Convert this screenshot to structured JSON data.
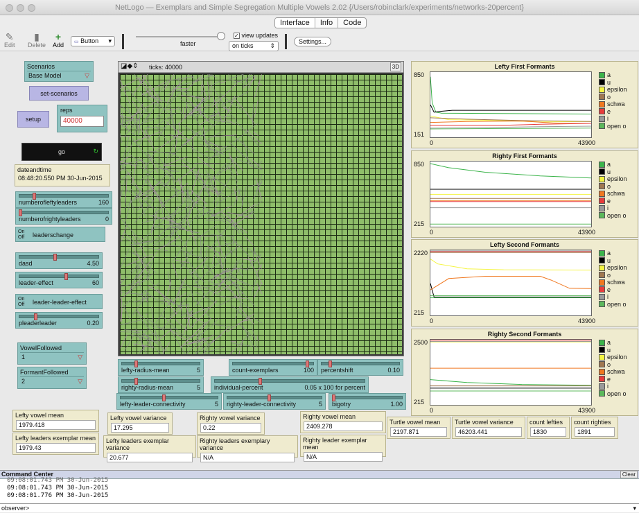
{
  "window": {
    "title": "NetLogo — Exemplars and Simple Segregation Multiple Vowels 2.02 {/Users/robinclark/experiments/networks-20percent}"
  },
  "tabs": [
    "Interface",
    "Info",
    "Code"
  ],
  "toolbar": {
    "edit": "Edit",
    "delete": "Delete",
    "add": "Add",
    "widget_type": "Button",
    "speed_label": "faster",
    "view_updates": "view updates",
    "update_mode": "on ticks",
    "settings": "Settings..."
  },
  "widgets": {
    "scenarios": {
      "label": "Scenarios",
      "value": "Base Model"
    },
    "set_scenarios": "set-scenarios",
    "setup": "setup",
    "reps": {
      "label": "reps",
      "value": "40000"
    },
    "go": "go",
    "dateandtime": {
      "label": "dateandtime",
      "value": "08:48:20.550 PM 30-Jun-2015"
    },
    "numberofleftyleaders": {
      "label": "numberofleftyleaders",
      "value": "160",
      "fraction": 0.16
    },
    "numberofrightyleaders": {
      "label": "numberofrightyleaders",
      "value": "0",
      "fraction": 0.0
    },
    "leaderschange": {
      "label": "leaderschange",
      "on": "On",
      "off": "Off"
    },
    "dasd": {
      "label": "dasd",
      "value": "4.50",
      "fraction": 0.45
    },
    "leader_effect": {
      "label": "leader-effect",
      "value": "60",
      "fraction": 0.6
    },
    "leader_leader_effect": {
      "label": "leader-leader-effect",
      "on": "On",
      "off": "Off"
    },
    "pleaderleader": {
      "label": "pleaderleader",
      "value": "0.20",
      "fraction": 0.2
    },
    "vowelfollowed": {
      "label": "VowelFollowed",
      "value": "1"
    },
    "formantfollowed": {
      "label": "FormantFollowed",
      "value": "2"
    }
  },
  "view": {
    "ticks_label": "ticks: 40000",
    "three_d": "3D"
  },
  "bottom_sliders": {
    "lefty_radius_mean": {
      "label": "lefty-radius-mean",
      "value": "5",
      "fraction": 0.18
    },
    "righty_radius_mean": {
      "label": "righty-radius-mean",
      "value": "5",
      "fraction": 0.18
    },
    "count_exemplars": {
      "label": "count-exemplars",
      "value": "100",
      "fraction": 0.95
    },
    "percentshift": {
      "label": "percentshift",
      "value": "0.10",
      "fraction": 0.1
    },
    "individual_percent": {
      "label": "individual-percent",
      "value": "0.05 x 100 for percent",
      "fraction": 0.3
    },
    "lefty_leader_connectivity": {
      "label": "lefty-leader-connectivity",
      "value": "5",
      "fraction": 0.45
    },
    "righty_leader_connectivity": {
      "label": "righty-leader-connectivity",
      "value": "5",
      "fraction": 0.45
    },
    "bigotry": {
      "label": "bigotry",
      "value": "1.00",
      "fraction": 0.0
    }
  },
  "monitors": {
    "lefty_vowel_mean": {
      "label": "Lefty vowel mean",
      "value": "1979.418"
    },
    "lefty_leaders_exemplar_mean": {
      "label": "Lefty leaders exemplar mean",
      "value": "1979.43"
    },
    "lefty_vowel_variance": {
      "label": "Lefty vowel variance",
      "value": "17.295"
    },
    "lefty_leaders_exemplar_variance": {
      "label": "Lefty leaders exemplar variance",
      "value": "20.677"
    },
    "righty_vowel_variance": {
      "label": "Righty vowel variance",
      "value": "0.22"
    },
    "righty_leaders_exemplary_variance": {
      "label": "Righty leaders exemplary variance",
      "value": "N/A"
    },
    "righty_vowel_mean": {
      "label": "Righty vowel mean",
      "value": "2409.278"
    },
    "righty_leader_exemplar_mean": {
      "label": "Righty leader exemplar mean",
      "value": "N/A"
    },
    "turtle_vowel_mean": {
      "label": "Turtle vowel mean",
      "value": "2197.871"
    },
    "turtle_vowel_variance": {
      "label": "Turtle vowel variance",
      "value": "46203.441"
    },
    "count_lefties": {
      "label": "count lefties",
      "value": "1830"
    },
    "count_righties": {
      "label": "count righties",
      "value": "1891"
    }
  },
  "legend": [
    {
      "name": "a",
      "color": "#3cb44b"
    },
    {
      "name": "u",
      "color": "#000000"
    },
    {
      "name": "epsilon",
      "color": "#f5f542"
    },
    {
      "name": "o",
      "color": "#a07850"
    },
    {
      "name": "schwa",
      "color": "#f07820"
    },
    {
      "name": "e",
      "color": "#e83c3c"
    },
    {
      "name": "i",
      "color": "#9a9a9a"
    },
    {
      "name": "open o",
      "color": "#5cb85c"
    }
  ],
  "chart_data": [
    {
      "type": "line",
      "title": "Lefty First Formants",
      "ylim": [
        151,
        850
      ],
      "xlim": [
        0,
        43900
      ],
      "y_min_label": "151",
      "y_max_label": "850",
      "x_min_label": "0",
      "x_max_label": "43900",
      "series": [
        {
          "name": "a",
          "color": "#3cb44b",
          "x": [
            0,
            500,
            1500,
            3000,
            43900
          ],
          "y": [
            800,
            520,
            420,
            410,
            400
          ]
        },
        {
          "name": "u",
          "color": "#000000",
          "x": [
            0,
            1000,
            3000,
            6000,
            43900
          ],
          "y": [
            500,
            420,
            430,
            440,
            440
          ]
        },
        {
          "name": "epsilon",
          "color": "#f5f542",
          "x": [
            0,
            5000,
            20000,
            30000,
            43900
          ],
          "y": [
            380,
            340,
            330,
            315,
            320
          ]
        },
        {
          "name": "o",
          "color": "#a07850",
          "x": [
            0,
            10000,
            25000,
            43900
          ],
          "y": [
            360,
            345,
            330,
            320
          ]
        },
        {
          "name": "schwa",
          "color": "#f07820",
          "x": [
            0,
            10000,
            25000,
            35000,
            43900
          ],
          "y": [
            310,
            320,
            325,
            300,
            300
          ]
        },
        {
          "name": "e",
          "color": "#e83c3c",
          "x": [
            0,
            20000,
            30000,
            43900
          ],
          "y": [
            280,
            280,
            290,
            300
          ]
        },
        {
          "name": "i",
          "color": "#9a9a9a",
          "x": [
            0,
            15000,
            30000,
            43900
          ],
          "y": [
            250,
            255,
            265,
            270
          ]
        },
        {
          "name": "open o",
          "color": "#5cb85c",
          "x": [
            0,
            20000,
            43900
          ],
          "y": [
            240,
            245,
            250
          ]
        }
      ]
    },
    {
      "type": "line",
      "title": "Righty First Formants",
      "ylim": [
        215,
        850
      ],
      "xlim": [
        0,
        43900
      ],
      "y_min_label": "215",
      "y_max_label": "850",
      "x_min_label": "0",
      "x_max_label": "43900",
      "series": [
        {
          "name": "a",
          "color": "#3cb44b",
          "x": [
            0,
            5000,
            15000,
            30000,
            43900
          ],
          "y": [
            830,
            790,
            745,
            710,
            690
          ]
        },
        {
          "name": "u",
          "color": "#000000",
          "x": [
            0,
            43900
          ],
          "y": [
            580,
            580
          ]
        },
        {
          "name": "epsilon",
          "color": "#f5f542",
          "x": [
            0,
            43900
          ],
          "y": [
            530,
            530
          ]
        },
        {
          "name": "o",
          "color": "#a07850",
          "x": [
            0,
            43900
          ],
          "y": [
            490,
            490
          ]
        },
        {
          "name": "schwa",
          "color": "#f07820",
          "x": [
            0,
            43900
          ],
          "y": [
            470,
            470
          ]
        },
        {
          "name": "e",
          "color": "#e83c3c",
          "x": [
            0,
            43900
          ],
          "y": [
            460,
            460
          ]
        },
        {
          "name": "i",
          "color": "#9a9a9a",
          "x": [
            0,
            43900
          ],
          "y": [
            400,
            400
          ]
        },
        {
          "name": "open o",
          "color": "#5cb85c",
          "x": [
            0,
            43900
          ],
          "y": [
            240,
            240
          ]
        }
      ]
    },
    {
      "type": "line",
      "title": "Lefty Second Formants",
      "ylim": [
        215,
        2220
      ],
      "xlim": [
        0,
        43900
      ],
      "y_min_label": "215",
      "y_max_label": "2220",
      "x_min_label": "0",
      "x_max_label": "43900",
      "series": [
        {
          "name": "a",
          "color": "#3cb44b",
          "x": [
            0,
            43900
          ],
          "y": [
            760,
            760
          ]
        },
        {
          "name": "u",
          "color": "#000000",
          "x": [
            0,
            1000,
            43900
          ],
          "y": [
            1200,
            780,
            780
          ]
        },
        {
          "name": "epsilon",
          "color": "#f5f542",
          "x": [
            0,
            2000,
            10000,
            20000,
            43900
          ],
          "y": [
            1950,
            1800,
            1650,
            1620,
            1610
          ]
        },
        {
          "name": "o",
          "color": "#a07850",
          "x": [
            0,
            43900
          ],
          "y": [
            2150,
            2150
          ]
        },
        {
          "name": "schwa",
          "color": "#f07820",
          "x": [
            0,
            5000,
            15000,
            30000,
            33000,
            38000,
            43900
          ],
          "y": [
            1000,
            1350,
            1420,
            1420,
            1300,
            1050,
            1040
          ]
        },
        {
          "name": "e",
          "color": "#e83c3c",
          "x": [
            0,
            43900
          ],
          "y": [
            2180,
            2180
          ]
        },
        {
          "name": "i",
          "color": "#9a9a9a",
          "x": [
            0,
            43900
          ],
          "y": [
            2200,
            2200
          ]
        },
        {
          "name": "open o",
          "color": "#5cb85c",
          "x": [
            0,
            43900
          ],
          "y": [
            820,
            820
          ]
        }
      ]
    },
    {
      "type": "line",
      "title": "Righty Second Formants",
      "ylim": [
        215,
        2500
      ],
      "xlim": [
        0,
        43900
      ],
      "y_min_label": "215",
      "y_max_label": "2500",
      "x_min_label": "0",
      "x_max_label": "43900",
      "series": [
        {
          "name": "a",
          "color": "#3cb44b",
          "x": [
            0,
            10000,
            25000,
            43900
          ],
          "y": [
            1100,
            1000,
            930,
            900
          ]
        },
        {
          "name": "u",
          "color": "#000000",
          "x": [
            0,
            43900
          ],
          "y": [
            800,
            800
          ]
        },
        {
          "name": "epsilon",
          "color": "#f5f542",
          "x": [
            0,
            43900
          ],
          "y": [
            2420,
            2420
          ]
        },
        {
          "name": "o",
          "color": "#a07850",
          "x": [
            0,
            43900
          ],
          "y": [
            880,
            880
          ]
        },
        {
          "name": "schwa",
          "color": "#f07820",
          "x": [
            0,
            43900
          ],
          "y": [
            1500,
            1500
          ]
        },
        {
          "name": "e",
          "color": "#e83c3c",
          "x": [
            0,
            43900
          ],
          "y": [
            2480,
            2480
          ]
        },
        {
          "name": "i",
          "color": "#9a9a9a",
          "x": [
            0,
            43900
          ],
          "y": [
            2440,
            2440
          ]
        },
        {
          "name": "open o",
          "color": "#5cb85c",
          "x": [
            0,
            43900
          ],
          "y": [
            700,
            700
          ]
        }
      ]
    }
  ],
  "command_center": {
    "title": "Command Center",
    "clear": "Clear",
    "lines": [
      "09:08:01.743 PM 30-Jun-2015",
      "09:08:01.743 PM 30-Jun-2015",
      "09:08:01.776 PM 30-Jun-2015"
    ],
    "prompt": "observer>"
  }
}
